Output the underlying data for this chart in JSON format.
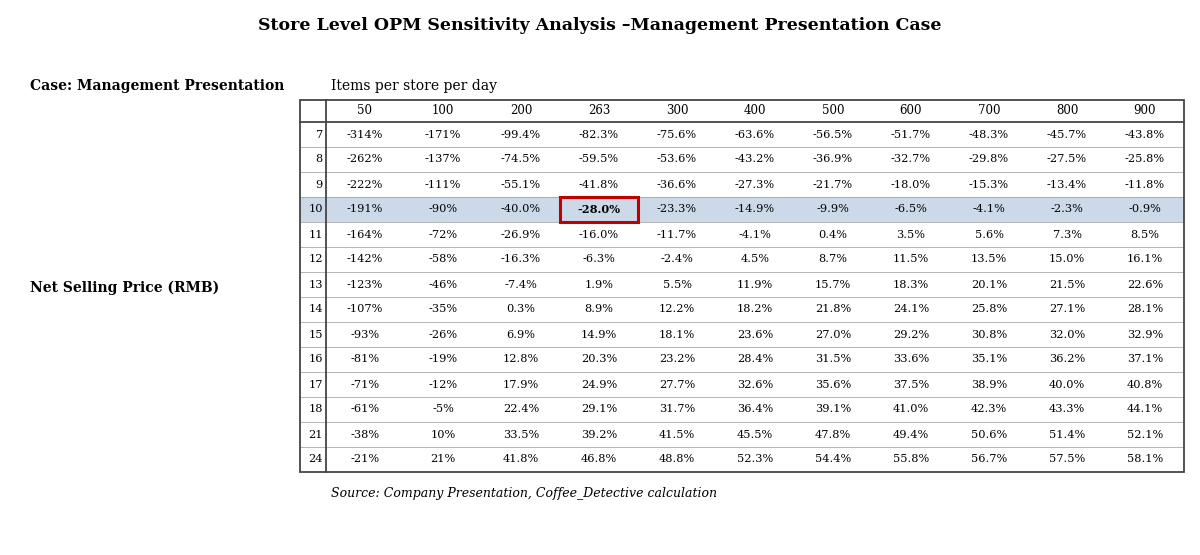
{
  "title": "Store Level OPM Sensitivity Analysis –Management Presentation Case",
  "case_label": "Case: Management Presentation",
  "items_label": "Items per store per day",
  "row_label": "Net Selling Price (RMB)",
  "source": "Source: Company Presentation, Coffee_Detective calculation",
  "col_headers": [
    "50",
    "100",
    "200",
    "263",
    "300",
    "400",
    "500",
    "600",
    "700",
    "800",
    "900"
  ],
  "row_headers": [
    "7",
    "8",
    "9",
    "10",
    "11",
    "12",
    "13",
    "14",
    "15",
    "16",
    "17",
    "18",
    "21",
    "24"
  ],
  "highlight_row": "10",
  "highlight_col": "263",
  "highlight_row_color": "#ccd9e8",
  "highlight_cell_border_color": "#c00000",
  "table_data": [
    [
      "-314%",
      "-171%",
      "-99.4%",
      "-82.3%",
      "-75.6%",
      "-63.6%",
      "-56.5%",
      "-51.7%",
      "-48.3%",
      "-45.7%",
      "-43.8%"
    ],
    [
      "-262%",
      "-137%",
      "-74.5%",
      "-59.5%",
      "-53.6%",
      "-43.2%",
      "-36.9%",
      "-32.7%",
      "-29.8%",
      "-27.5%",
      "-25.8%"
    ],
    [
      "-222%",
      "-111%",
      "-55.1%",
      "-41.8%",
      "-36.6%",
      "-27.3%",
      "-21.7%",
      "-18.0%",
      "-15.3%",
      "-13.4%",
      "-11.8%"
    ],
    [
      "-191%",
      "-90%",
      "-40.0%",
      "-28.0%",
      "-23.3%",
      "-14.9%",
      "-9.9%",
      "-6.5%",
      "-4.1%",
      "-2.3%",
      "-0.9%"
    ],
    [
      "-164%",
      "-72%",
      "-26.9%",
      "-16.0%",
      "-11.7%",
      "-4.1%",
      "0.4%",
      "3.5%",
      "5.6%",
      "7.3%",
      "8.5%"
    ],
    [
      "-142%",
      "-58%",
      "-16.3%",
      "-6.3%",
      "-2.4%",
      "4.5%",
      "8.7%",
      "11.5%",
      "13.5%",
      "15.0%",
      "16.1%"
    ],
    [
      "-123%",
      "-46%",
      "-7.4%",
      "1.9%",
      "5.5%",
      "11.9%",
      "15.7%",
      "18.3%",
      "20.1%",
      "21.5%",
      "22.6%"
    ],
    [
      "-107%",
      "-35%",
      "0.3%",
      "8.9%",
      "12.2%",
      "18.2%",
      "21.8%",
      "24.1%",
      "25.8%",
      "27.1%",
      "28.1%"
    ],
    [
      "-93%",
      "-26%",
      "6.9%",
      "14.9%",
      "18.1%",
      "23.6%",
      "27.0%",
      "29.2%",
      "30.8%",
      "32.0%",
      "32.9%"
    ],
    [
      "-81%",
      "-19%",
      "12.8%",
      "20.3%",
      "23.2%",
      "28.4%",
      "31.5%",
      "33.6%",
      "35.1%",
      "36.2%",
      "37.1%"
    ],
    [
      "-71%",
      "-12%",
      "17.9%",
      "24.9%",
      "27.7%",
      "32.6%",
      "35.6%",
      "37.5%",
      "38.9%",
      "40.0%",
      "40.8%"
    ],
    [
      "-61%",
      "-5%",
      "22.4%",
      "29.1%",
      "31.7%",
      "36.4%",
      "39.1%",
      "41.0%",
      "42.3%",
      "43.3%",
      "44.1%"
    ],
    [
      "-38%",
      "10%",
      "33.5%",
      "39.2%",
      "41.5%",
      "45.5%",
      "47.8%",
      "49.4%",
      "50.6%",
      "51.4%",
      "52.1%"
    ],
    [
      "-21%",
      "21%",
      "41.8%",
      "46.8%",
      "48.8%",
      "52.3%",
      "54.4%",
      "55.8%",
      "56.7%",
      "57.5%",
      "58.1%"
    ]
  ],
  "bg_color": "#ffffff",
  "table_border_color": "#444444",
  "header_border_color": "#444444",
  "row_border_color": "#999999",
  "cell_font_size": 8.2,
  "header_font_size": 8.5,
  "label_font_size": 10.0,
  "title_font_size": 12.5
}
